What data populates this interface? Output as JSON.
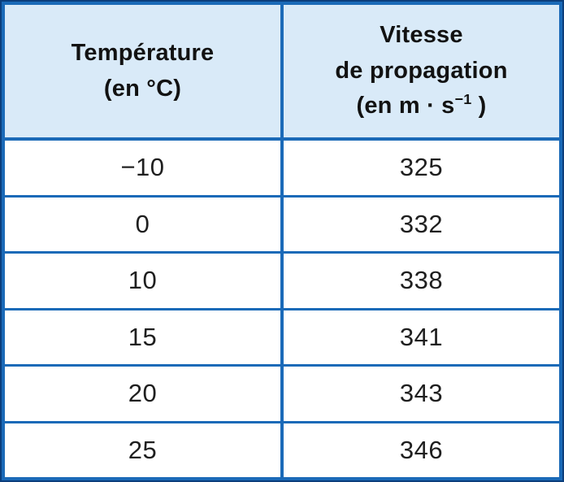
{
  "colors": {
    "border_blue": "#1b6ab8",
    "outer_dark_blue": "#0b3e7c",
    "header_background": "#d9eaf8",
    "text": "#1c1c1c"
  },
  "header": {
    "temperature": {
      "line1": "Température",
      "line2": "(en °C)"
    },
    "speed": {
      "line1": "Vitesse",
      "line2": "de propagation",
      "unit_pre": "(en m · s",
      "unit_sup": "−1",
      "unit_post": " )"
    }
  },
  "table": {
    "rows": [
      {
        "temp": "−10",
        "speed": "325"
      },
      {
        "temp": "0",
        "speed": "332"
      },
      {
        "temp": "10",
        "speed": "338"
      },
      {
        "temp": "15",
        "speed": "341"
      },
      {
        "temp": "20",
        "speed": "343"
      },
      {
        "temp": "25",
        "speed": "346"
      }
    ]
  },
  "chart_data": {
    "type": "table",
    "columns": [
      "Température (en °C)",
      "Vitesse de propagation (en m·s⁻¹)"
    ],
    "rows": [
      [
        -10,
        325
      ],
      [
        0,
        332
      ],
      [
        10,
        338
      ],
      [
        15,
        341
      ],
      [
        20,
        343
      ],
      [
        25,
        346
      ]
    ],
    "title": "",
    "layout_hints": {
      "header_background": "#d9eaf8",
      "grid": "blue solid borders",
      "alignment": "center"
    }
  }
}
